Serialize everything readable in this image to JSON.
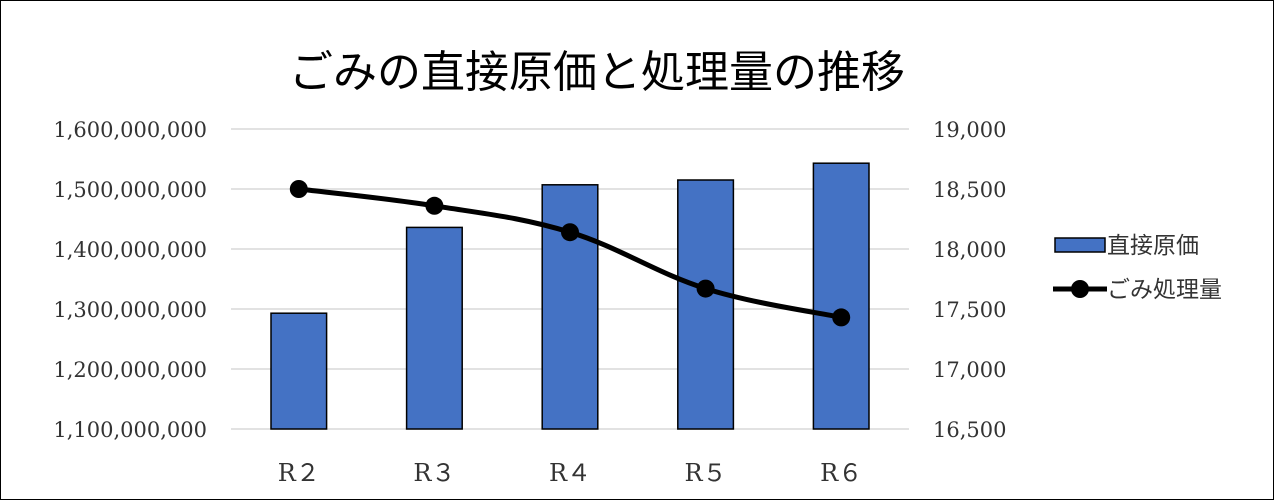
{
  "chart_data": {
    "type": "bar",
    "title": "ごみの直接原価と処理量の推移",
    "categories": [
      "R２",
      "R３",
      "R４",
      "R５",
      "R６"
    ],
    "series": [
      {
        "name": "直接原価",
        "type": "bar",
        "axis": "left",
        "color": "#4472C4",
        "values": [
          1293000000,
          1436000000,
          1507000000,
          1515000000,
          1543000000
        ]
      },
      {
        "name": "ごみ処理量",
        "type": "line",
        "axis": "right",
        "color": "#000000",
        "values": [
          18500,
          18360,
          18140,
          17670,
          17430
        ]
      }
    ],
    "y_left": {
      "min": 1100000000,
      "max": 1600000000,
      "ticks": [
        1600000000,
        1500000000,
        1400000000,
        1300000000,
        1200000000,
        1100000000
      ],
      "tick_labels": [
        "1,600,000,000",
        "1,500,000,000",
        "1,400,000,000",
        "1,300,000,000",
        "1,200,000,000",
        "1,100,000,000"
      ]
    },
    "y_right": {
      "min": 16500,
      "max": 19000,
      "ticks": [
        19000,
        18500,
        18000,
        17500,
        17000,
        16500
      ],
      "tick_labels": [
        "19,000",
        "18,500",
        "18,000",
        "17,500",
        "17,000",
        "16,500"
      ]
    },
    "grid": true,
    "legend_position": "right"
  }
}
